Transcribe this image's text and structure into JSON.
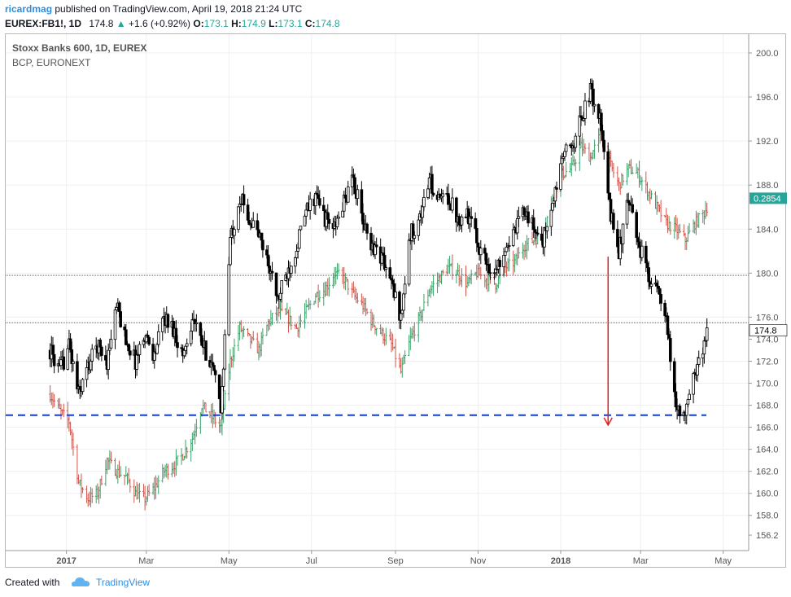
{
  "header": {
    "author": "ricardmag",
    "published_text": "published on TradingView.com, April 19, 2018 21:24 UTC",
    "symbol": "EUREX:FB1!, 1D",
    "last": "174.8",
    "change": "+1.6 (+0.92%)",
    "o_label": "O:",
    "o_val": "173.1",
    "h_label": "H:",
    "h_val": "174.9",
    "l_label": "L:",
    "l_val": "173.1",
    "c_label": "C:",
    "c_val": "174.8"
  },
  "legend": {
    "main": "Stoxx Banks 600, 1D, EUREX",
    "secondary": "BCP, EURONEXT"
  },
  "price_axis": {
    "ticks": [
      "200.0",
      "196.0",
      "192.0",
      "188.0",
      "184.0",
      "180.0",
      "176.0",
      "174.0",
      "172.0",
      "170.0",
      "168.0",
      "166.0",
      "164.0",
      "162.0",
      "160.0",
      "158.0",
      "156.2"
    ],
    "last_price_label": "174.8",
    "bcp_label": "0.2854",
    "bcp_label_color": "#26a69a"
  },
  "time_axis": {
    "ticks": [
      {
        "label": "2017",
        "bold": true
      },
      {
        "label": "Mar",
        "bold": false
      },
      {
        "label": "May",
        "bold": false
      },
      {
        "label": "Jul",
        "bold": false
      },
      {
        "label": "Sep",
        "bold": false
      },
      {
        "label": "Nov",
        "bold": false
      },
      {
        "label": "2018",
        "bold": true
      },
      {
        "label": "Mar",
        "bold": false
      },
      {
        "label": "May",
        "bold": false
      }
    ]
  },
  "footer": {
    "created_with": "Created with",
    "brand": "TradingView"
  },
  "chart_data": {
    "type": "candlestick",
    "title": "Stoxx Banks 600, 1D, EUREX",
    "ylim": [
      156.2,
      200.0
    ],
    "x_range": [
      "2016-12-20",
      "2018-05-06"
    ],
    "series": [
      {
        "name": "Stoxx Banks 600, 1D, EUREX",
        "style": "hollow black candles",
        "points": [
          [
            "2016-12-20",
            173.0
          ],
          [
            "2016-12-27",
            171.0
          ],
          [
            "2017-01-03",
            173.5
          ],
          [
            "2017-01-10",
            169.0
          ],
          [
            "2017-01-17",
            171.5
          ],
          [
            "2017-01-24",
            173.5
          ],
          [
            "2017-01-31",
            172.0
          ],
          [
            "2017-02-07",
            177.0
          ],
          [
            "2017-02-14",
            174.0
          ],
          [
            "2017-02-21",
            172.0
          ],
          [
            "2017-02-28",
            174.5
          ],
          [
            "2017-03-07",
            172.5
          ],
          [
            "2017-03-14",
            176.0
          ],
          [
            "2017-03-21",
            175.0
          ],
          [
            "2017-03-28",
            172.5
          ],
          [
            "2017-04-04",
            176.0
          ],
          [
            "2017-04-11",
            173.5
          ],
          [
            "2017-04-18",
            172.0
          ],
          [
            "2017-04-25",
            167.5
          ],
          [
            "2017-05-02",
            183.0
          ],
          [
            "2017-05-09",
            187.0
          ],
          [
            "2017-05-16",
            185.0
          ],
          [
            "2017-05-23",
            183.5
          ],
          [
            "2017-05-30",
            181.0
          ],
          [
            "2017-06-06",
            177.5
          ],
          [
            "2017-06-13",
            180.0
          ],
          [
            "2017-06-20",
            182.5
          ],
          [
            "2017-06-27",
            185.5
          ],
          [
            "2017-07-04",
            187.0
          ],
          [
            "2017-07-11",
            185.0
          ],
          [
            "2017-07-18",
            184.0
          ],
          [
            "2017-07-25",
            186.5
          ],
          [
            "2017-08-01",
            188.5
          ],
          [
            "2017-08-08",
            184.5
          ],
          [
            "2017-08-15",
            182.5
          ],
          [
            "2017-08-22",
            181.5
          ],
          [
            "2017-08-29",
            179.0
          ],
          [
            "2017-09-05",
            176.0
          ],
          [
            "2017-09-12",
            183.5
          ],
          [
            "2017-09-19",
            185.0
          ],
          [
            "2017-09-26",
            188.5
          ],
          [
            "2017-10-03",
            186.5
          ],
          [
            "2017-10-10",
            187.0
          ],
          [
            "2017-10-17",
            185.0
          ],
          [
            "2017-10-24",
            185.5
          ],
          [
            "2017-10-31",
            183.0
          ],
          [
            "2017-11-07",
            181.0
          ],
          [
            "2017-11-14",
            180.0
          ],
          [
            "2017-11-21",
            182.5
          ],
          [
            "2017-11-28",
            183.5
          ],
          [
            "2017-12-05",
            186.0
          ],
          [
            "2017-12-12",
            184.0
          ],
          [
            "2017-12-19",
            183.0
          ],
          [
            "2017-12-26",
            186.0
          ],
          [
            "2018-01-02",
            190.5
          ],
          [
            "2018-01-09",
            191.5
          ],
          [
            "2018-01-16",
            194.0
          ],
          [
            "2018-01-23",
            196.5
          ],
          [
            "2018-01-30",
            194.0
          ],
          [
            "2018-02-06",
            186.0
          ],
          [
            "2018-02-13",
            182.0
          ],
          [
            "2018-02-20",
            186.5
          ],
          [
            "2018-02-27",
            183.0
          ],
          [
            "2018-03-06",
            180.0
          ],
          [
            "2018-03-13",
            178.5
          ],
          [
            "2018-03-20",
            175.5
          ],
          [
            "2018-03-27",
            168.0
          ],
          [
            "2018-04-03",
            167.0
          ],
          [
            "2018-04-10",
            171.0
          ],
          [
            "2018-04-17",
            173.5
          ],
          [
            "2018-04-19",
            174.8
          ]
        ]
      },
      {
        "name": "BCP, EURONEXT",
        "style": "red/green bars (overlay, own scale)",
        "points": [
          [
            "2016-12-20",
            169.0
          ],
          [
            "2016-12-27",
            167.5
          ],
          [
            "2017-01-03",
            166.5
          ],
          [
            "2017-01-10",
            161.0
          ],
          [
            "2017-01-17",
            159.5
          ],
          [
            "2017-01-24",
            160.0
          ],
          [
            "2017-01-31",
            163.0
          ],
          [
            "2017-02-07",
            162.0
          ],
          [
            "2017-02-14",
            161.5
          ],
          [
            "2017-02-21",
            160.0
          ],
          [
            "2017-02-28",
            159.5
          ],
          [
            "2017-03-07",
            160.5
          ],
          [
            "2017-03-14",
            162.0
          ],
          [
            "2017-03-21",
            162.5
          ],
          [
            "2017-03-28",
            163.5
          ],
          [
            "2017-04-04",
            165.0
          ],
          [
            "2017-04-11",
            168.0
          ],
          [
            "2017-04-18",
            167.0
          ],
          [
            "2017-04-25",
            166.0
          ],
          [
            "2017-05-02",
            172.0
          ],
          [
            "2017-05-09",
            175.0
          ],
          [
            "2017-05-16",
            174.0
          ],
          [
            "2017-05-23",
            173.0
          ],
          [
            "2017-05-30",
            175.5
          ],
          [
            "2017-06-06",
            176.5
          ],
          [
            "2017-06-13",
            176.0
          ],
          [
            "2017-06-20",
            175.0
          ],
          [
            "2017-06-27",
            176.5
          ],
          [
            "2017-07-04",
            178.0
          ],
          [
            "2017-07-11",
            178.5
          ],
          [
            "2017-07-18",
            180.0
          ],
          [
            "2017-07-25",
            179.5
          ],
          [
            "2017-08-01",
            178.0
          ],
          [
            "2017-08-08",
            177.0
          ],
          [
            "2017-08-15",
            175.5
          ],
          [
            "2017-08-22",
            174.5
          ],
          [
            "2017-08-29",
            173.5
          ],
          [
            "2017-09-05",
            171.0
          ],
          [
            "2017-09-12",
            174.0
          ],
          [
            "2017-09-19",
            176.0
          ],
          [
            "2017-09-26",
            178.5
          ],
          [
            "2017-10-03",
            179.5
          ],
          [
            "2017-10-10",
            180.5
          ],
          [
            "2017-10-17",
            180.0
          ],
          [
            "2017-10-24",
            179.0
          ],
          [
            "2017-10-31",
            180.0
          ],
          [
            "2017-11-07",
            179.5
          ],
          [
            "2017-11-14",
            179.0
          ],
          [
            "2017-11-21",
            180.5
          ],
          [
            "2017-11-28",
            181.0
          ],
          [
            "2017-12-05",
            182.5
          ],
          [
            "2017-12-12",
            183.0
          ],
          [
            "2017-12-19",
            183.5
          ],
          [
            "2017-12-26",
            187.0
          ],
          [
            "2018-01-02",
            189.0
          ],
          [
            "2018-01-09",
            189.5
          ],
          [
            "2018-01-16",
            191.5
          ],
          [
            "2018-01-23",
            190.5
          ],
          [
            "2018-01-30",
            192.5
          ],
          [
            "2018-02-06",
            190.0
          ],
          [
            "2018-02-13",
            188.0
          ],
          [
            "2018-02-20",
            189.5
          ],
          [
            "2018-02-27",
            189.0
          ],
          [
            "2018-03-06",
            187.5
          ],
          [
            "2018-03-13",
            186.0
          ],
          [
            "2018-03-20",
            184.5
          ],
          [
            "2018-03-27",
            184.0
          ],
          [
            "2018-04-03",
            183.0
          ],
          [
            "2018-04-10",
            184.5
          ],
          [
            "2018-04-17",
            185.5
          ],
          [
            "2018-04-19",
            186.0
          ]
        ]
      }
    ],
    "horizontal_lines": [
      {
        "value": 179.8,
        "style": "dotted",
        "color": "#3f3fd0"
      },
      {
        "value": 175.5,
        "style": "dotted",
        "color": "#3f3fd0"
      },
      {
        "value": 167.1,
        "style": "dashed",
        "color": "#0b3bf0"
      }
    ],
    "annotations": [
      {
        "type": "arrow",
        "color": "#e02020",
        "date": "2018-02-05",
        "from": 181.5,
        "to": 166.2
      }
    ],
    "grid": true,
    "price_axis_side": "right"
  }
}
